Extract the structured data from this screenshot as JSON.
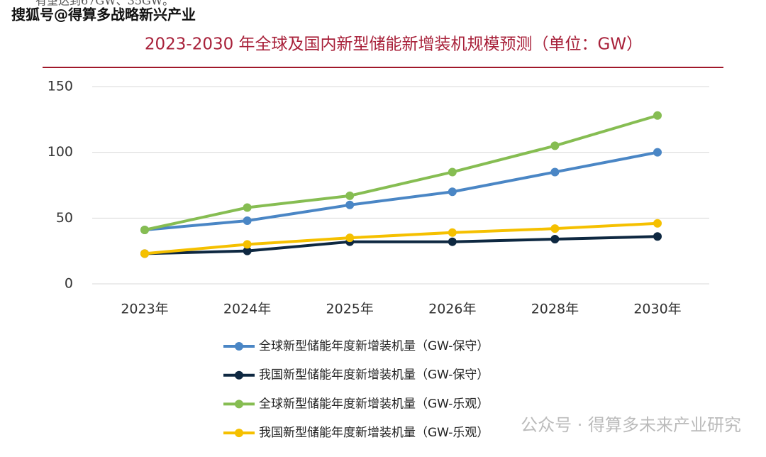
{
  "top_text": "有望达到67GW、35GW。",
  "watermark": "搜狐号@得算多战略新兴产业",
  "footer_watermark": "公众号 · 得算多未来产业研究",
  "chart_data": {
    "type": "line",
    "title": "2023-2030 年全球及国内新型储能新增装机规模预测（单位：GW）",
    "categories": [
      "2023年",
      "2024年",
      "2025年",
      "2026年",
      "2028年",
      "2030年"
    ],
    "ylim": [
      0,
      150
    ],
    "yticks": [
      0,
      50,
      100,
      150
    ],
    "grid": true,
    "series": [
      {
        "name": "全球新型储能年度新增装机量（GW-保守）",
        "color": "#4a86c5",
        "values": [
          41,
          48,
          60,
          70,
          85,
          100
        ]
      },
      {
        "name": "我国新型储能年度新增装机量（GW-保守）",
        "color": "#0e2841",
        "values": [
          23,
          25,
          32,
          32,
          34,
          36
        ]
      },
      {
        "name": "全球新型储能年度新增装机量（GW-乐观）",
        "color": "#86bd52",
        "values": [
          41,
          58,
          67,
          85,
          105,
          128
        ]
      },
      {
        "name": "我国新型储能年度新增装机量（GW-乐观）",
        "color": "#f5c000",
        "values": [
          23,
          30,
          35,
          39,
          42,
          46
        ]
      }
    ]
  }
}
